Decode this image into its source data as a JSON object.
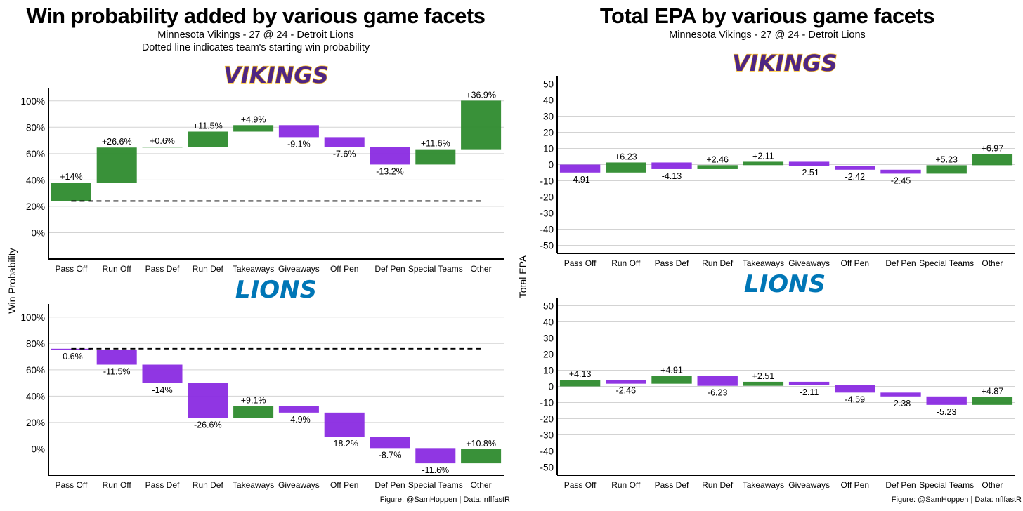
{
  "left": {
    "title": "Win probability added by various game facets",
    "subtitle": "Minnesota Vikings - 27 @ 24 - Detroit Lions",
    "note": "Dotted line indicates team's starting win probability",
    "ylabel": "Win Probability",
    "caption": "Figure: @SamHoppen | Data: nflfastR"
  },
  "right": {
    "title": "Total EPA by various game facets",
    "subtitle": "Minnesota Vikings - 27 @ 24 - Detroit Lions",
    "ylabel": "Total EPA",
    "caption": "Figure: @SamHoppen | Data: nflfastR"
  },
  "logos": {
    "vikings": "VIKINGS",
    "lions": "LIONS"
  },
  "colors": {
    "positive": "#2e8b2e",
    "negative": "#8a2be2",
    "vikings_logo": "#4f2683",
    "vikings_outline": "#ffc62f",
    "lions_logo": "#0076b6"
  },
  "chart_data": [
    {
      "type": "bar",
      "subtype": "waterfall",
      "team": "Vikings",
      "categories": [
        "Pass Off",
        "Run Off",
        "Pass Def",
        "Run Def",
        "Takeaways",
        "Giveaways",
        "Off Pen",
        "Def Pen",
        "Special Teams",
        "Other"
      ],
      "values": [
        14,
        26.6,
        0.6,
        11.5,
        4.9,
        -9.1,
        -7.6,
        -13.2,
        11.6,
        36.9
      ],
      "labels": [
        "+14%",
        "+26.6%",
        "+0.6%",
        "+11.5%",
        "+4.9%",
        "-9.1%",
        "-7.6%",
        "-13.2%",
        "+11.6%",
        "+36.9%"
      ],
      "start": 24,
      "ylim": [
        -20,
        110
      ],
      "yticks": [
        0,
        20,
        40,
        60,
        80,
        100
      ],
      "ytick_labels": [
        "0%",
        "20%",
        "40%",
        "60%",
        "80%",
        "100%"
      ],
      "ylabel": "Win Probability",
      "grid": true
    },
    {
      "type": "bar",
      "subtype": "waterfall",
      "team": "Lions",
      "categories": [
        "Pass Off",
        "Run Off",
        "Pass Def",
        "Run Def",
        "Takeaways",
        "Giveaways",
        "Off Pen",
        "Def Pen",
        "Special Teams",
        "Other"
      ],
      "values": [
        -0.6,
        -11.5,
        -14,
        -26.6,
        9.1,
        -4.9,
        -18.2,
        -8.7,
        -11.6,
        10.8
      ],
      "labels": [
        "-0.6%",
        "-11.5%",
        "-14%",
        "-26.6%",
        "+9.1%",
        "-4.9%",
        "-18.2%",
        "-8.7%",
        "-11.6%",
        "+10.8%"
      ],
      "start": 76,
      "ylim": [
        -20,
        110
      ],
      "yticks": [
        0,
        20,
        40,
        60,
        80,
        100
      ],
      "ytick_labels": [
        "0%",
        "20%",
        "40%",
        "60%",
        "80%",
        "100%"
      ],
      "ylabel": "Win Probability",
      "grid": true
    },
    {
      "type": "bar",
      "subtype": "waterfall",
      "team": "Vikings",
      "categories": [
        "Pass Off",
        "Run Off",
        "Pass Def",
        "Run Def",
        "Takeaways",
        "Giveaways",
        "Off Pen",
        "Def Pen",
        "Special Teams",
        "Other"
      ],
      "values": [
        -4.91,
        6.23,
        -4.13,
        2.46,
        2.11,
        -2.51,
        -2.42,
        -2.45,
        5.23,
        6.97
      ],
      "labels": [
        "-4.91",
        "+6.23",
        "-4.13",
        "+2.46",
        "+2.11",
        "-2.51",
        "-2.42",
        "-2.45",
        "+5.23",
        "+6.97"
      ],
      "start": 0,
      "ylim": [
        -55,
        55
      ],
      "yticks": [
        -50,
        -40,
        -30,
        -20,
        -10,
        0,
        10,
        20,
        30,
        40,
        50
      ],
      "ytick_labels": [
        "-50",
        "-40",
        "-30",
        "-20",
        "-10",
        "0",
        "10",
        "20",
        "30",
        "40",
        "50"
      ],
      "ylabel": "Total EPA",
      "grid": true
    },
    {
      "type": "bar",
      "subtype": "waterfall",
      "team": "Lions",
      "categories": [
        "Pass Off",
        "Run Off",
        "Pass Def",
        "Run Def",
        "Takeaways",
        "Giveaways",
        "Off Pen",
        "Def Pen",
        "Special Teams",
        "Other"
      ],
      "values": [
        4.13,
        -2.46,
        4.91,
        -6.23,
        2.51,
        -2.11,
        -4.59,
        -2.38,
        -5.23,
        4.87
      ],
      "labels": [
        "+4.13",
        "-2.46",
        "+4.91",
        "-6.23",
        "+2.51",
        "-2.11",
        "-4.59",
        "-2.38",
        "-5.23",
        "+4.87"
      ],
      "start": 0,
      "ylim": [
        -55,
        55
      ],
      "yticks": [
        -50,
        -40,
        -30,
        -20,
        -10,
        0,
        10,
        20,
        30,
        40,
        50
      ],
      "ytick_labels": [
        "-50",
        "-40",
        "-30",
        "-20",
        "-10",
        "0",
        "10",
        "20",
        "30",
        "40",
        "50"
      ],
      "ylabel": "Total EPA",
      "grid": true
    }
  ]
}
